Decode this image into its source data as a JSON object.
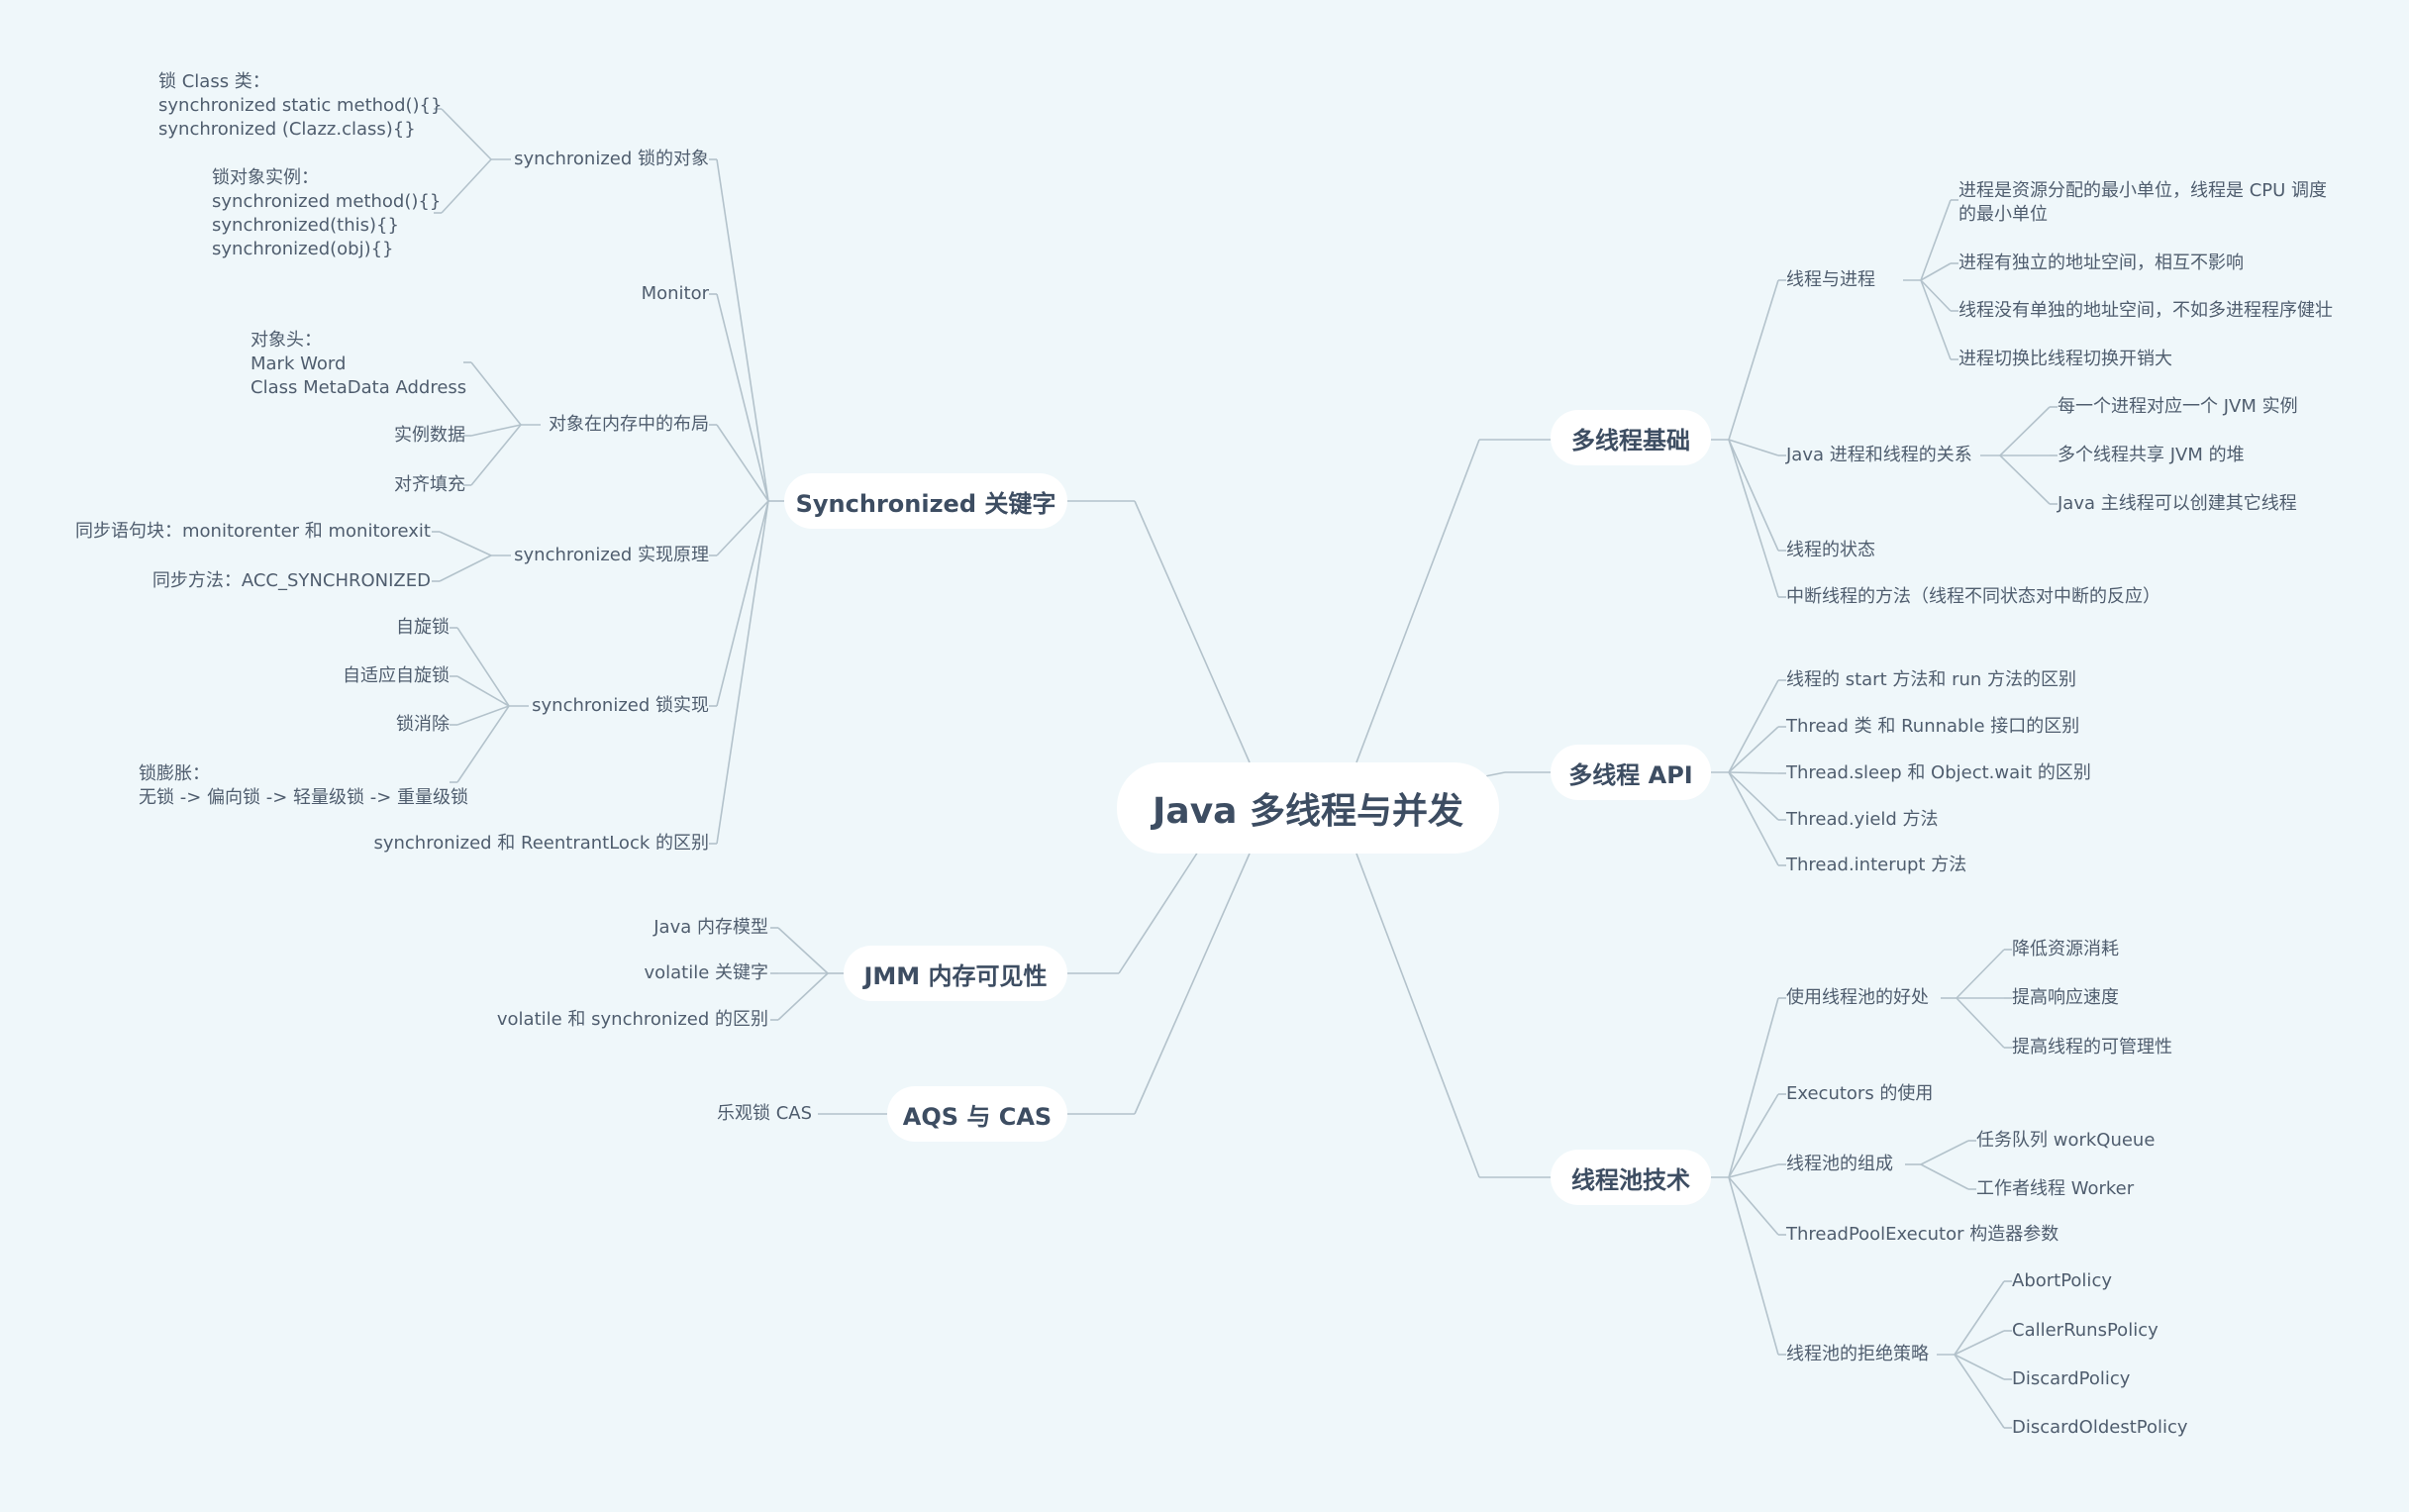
{
  "root": "Java 多线程与并发",
  "branches": {
    "basics": {
      "title": "多线程基础",
      "thread_process": {
        "label": "线程与进程",
        "items": [
          "进程是资源分配的最小单位，线程是 CPU 调度\n的最小单位",
          "进程有独立的地址空间，相互不影响",
          "线程没有单独的地址空间，不如多进程程序健壮",
          "进程切换比线程切换开销大"
        ]
      },
      "jvm_relation": {
        "label": "Java 进程和线程的关系",
        "items": [
          "每一个进程对应一个 JVM 实例",
          "多个线程共享 JVM 的堆",
          "Java 主线程可以创建其它线程"
        ]
      },
      "state": "线程的状态",
      "interrupt": "中断线程的方法（线程不同状态对中断的反应）"
    },
    "api": {
      "title": "多线程 API",
      "items": [
        "线程的 start 方法和 run 方法的区别",
        "Thread 类 和 Runnable 接口的区别",
        "Thread.sleep 和 Object.wait 的区别",
        "Thread.yield 方法",
        "Thread.interupt 方法"
      ]
    },
    "pool": {
      "title": "线程池技术",
      "benefits": {
        "label": "使用线程池的好处",
        "items": [
          "降低资源消耗",
          "提高响应速度",
          "提高线程的可管理性"
        ]
      },
      "executors": "Executors 的使用",
      "composition": {
        "label": "线程池的组成",
        "items": [
          "任务队列 workQueue",
          "工作者线程 Worker"
        ]
      },
      "tpe": "ThreadPoolExecutor 构造器参数",
      "reject": {
        "label": "线程池的拒绝策略",
        "items": [
          "AbortPolicy",
          "CallerRunsPolicy",
          "DiscardPolicy",
          "DiscardOldestPolicy"
        ]
      }
    },
    "sync": {
      "title": "Synchronized 关键字",
      "lock_object": {
        "label": "synchronized 锁的对象",
        "items": [
          "锁 Class 类：\nsynchronized static method(){}\nsynchronized (Clazz.class){}",
          "锁对象实例：\nsynchronized method(){}\nsynchronized(this){}\nsynchronized(obj){}"
        ]
      },
      "monitor": "Monitor",
      "layout": {
        "label": "对象在内存中的布局",
        "items": [
          "对象头：\nMark Word\nClass MetaData Address",
          "实例数据",
          "对齐填充"
        ]
      },
      "principle": {
        "label": "synchronized 实现原理",
        "items": [
          "同步语句块：monitorenter 和 monitorexit",
          "同步方法：ACC_SYNCHRONIZED"
        ]
      },
      "impl": {
        "label": "synchronized 锁实现",
        "items": [
          "自旋锁",
          "自适应自旋锁",
          "锁消除",
          "锁膨胀：\n无锁 -> 偏向锁 -> 轻量级锁 -> 重量级锁"
        ]
      },
      "vs_reentrant": "synchronized 和 ReentrantLock 的区别"
    },
    "jmm": {
      "title": "JMM 内存可见性",
      "items": [
        "Java 内存模型",
        "volatile 关键字",
        "volatile 和 synchronized 的区别"
      ]
    },
    "aqs": {
      "title": "AQS 与 CAS",
      "items": [
        "乐观锁 CAS"
      ]
    }
  },
  "colors": {
    "background": "#eff7fa",
    "line": "#b3c2cb",
    "node_fill": "#ffffff",
    "main_text": "#3d4d62",
    "sub_text": "#4f5d6e"
  }
}
